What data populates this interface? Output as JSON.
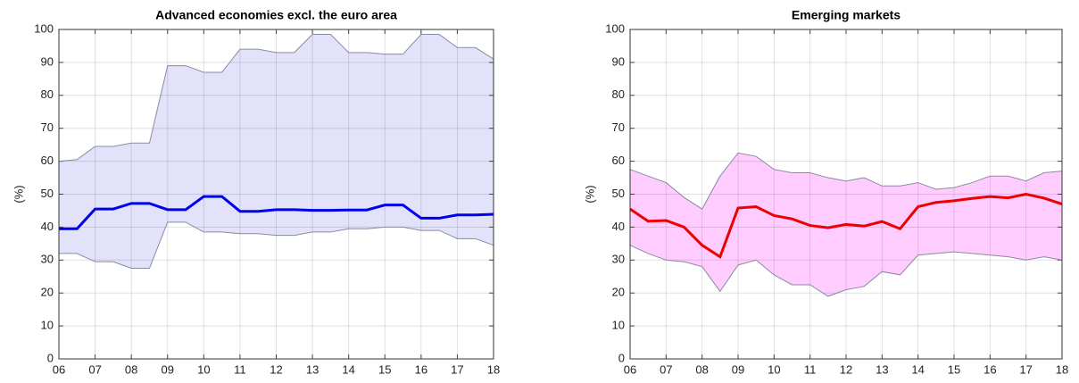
{
  "chart_data": [
    {
      "type": "band-line",
      "title": "Advanced economies excl. the euro area",
      "ylabel": "(%)",
      "x": [
        6,
        6.5,
        7,
        7.5,
        8,
        8.5,
        9,
        9.5,
        10,
        10.5,
        11,
        11.5,
        12,
        12.5,
        13,
        13.5,
        14,
        14.5,
        15,
        15.5,
        16,
        16.5,
        17,
        17.5,
        18
      ],
      "values": [
        39.5,
        39.5,
        45.5,
        45.5,
        47.2,
        47.2,
        45.3,
        45.3,
        49.3,
        49.3,
        44.8,
        44.8,
        45.3,
        45.3,
        45.1,
        45.1,
        45.2,
        45.2,
        46.7,
        46.7,
        42.7,
        42.7,
        43.7,
        43.7,
        43.9
      ],
      "color": "#0000ee",
      "band": {
        "upper": [
          60,
          60.5,
          64.5,
          64.5,
          65.5,
          65.5,
          89,
          89,
          87,
          87,
          94,
          94,
          93,
          93,
          98.5,
          98.5,
          93,
          93,
          92.5,
          92.5,
          98.5,
          98.5,
          94.5,
          94.5,
          91
        ],
        "lower": [
          32,
          32,
          29.5,
          29.5,
          27.5,
          27.5,
          41.5,
          41.5,
          38.5,
          38.5,
          38,
          38,
          37.5,
          37.5,
          38.5,
          38.5,
          39.5,
          39.5,
          40,
          40,
          39,
          39,
          36.5,
          36.5,
          34.5
        ],
        "color": "#e2e2fa"
      },
      "xlim": [
        6,
        18
      ],
      "xticks": [
        {
          "value": 6,
          "label": "06"
        },
        {
          "value": 7,
          "label": "07"
        },
        {
          "value": 8,
          "label": "08"
        },
        {
          "value": 9,
          "label": "09"
        },
        {
          "value": 10,
          "label": "10"
        },
        {
          "value": 11,
          "label": "11"
        },
        {
          "value": 12,
          "label": "12"
        },
        {
          "value": 13,
          "label": "13"
        },
        {
          "value": 14,
          "label": "14"
        },
        {
          "value": 15,
          "label": "15"
        },
        {
          "value": 16,
          "label": "16"
        },
        {
          "value": 17,
          "label": "17"
        },
        {
          "value": 18,
          "label": "18"
        }
      ],
      "ylim": [
        0,
        100
      ],
      "yticks": [
        0,
        10,
        20,
        30,
        40,
        50,
        60,
        70,
        80,
        90,
        100
      ],
      "grid": true
    },
    {
      "type": "band-line",
      "title": "Emerging markets",
      "ylabel": "(%)",
      "x": [
        6,
        6.5,
        7,
        7.5,
        8,
        8.5,
        9,
        9.5,
        10,
        10.5,
        11,
        11.5,
        12,
        12.5,
        13,
        13.5,
        14,
        14.5,
        15,
        15.5,
        16,
        16.5,
        17,
        17.5,
        18
      ],
      "values": [
        45.5,
        41.8,
        42,
        40,
        34.5,
        31,
        45.8,
        46.2,
        43.5,
        42.5,
        40.5,
        39.8,
        40.8,
        40.3,
        41.7,
        39.5,
        46.2,
        47.5,
        48,
        48.7,
        49.3,
        48.9,
        50,
        48.8,
        47
      ],
      "color": "#ee0000",
      "band": {
        "upper": [
          57.5,
          55.5,
          53.5,
          49,
          45.5,
          55.5,
          62.5,
          61.5,
          57.5,
          56.5,
          56.5,
          55,
          54,
          55,
          52.5,
          52.5,
          53.5,
          51.5,
          52,
          53.5,
          55.5,
          55.5,
          54,
          56.5,
          57
        ],
        "lower": [
          34.5,
          32,
          30,
          29.5,
          28,
          20.5,
          28.5,
          30,
          25.5,
          22.5,
          22.5,
          19,
          21,
          22,
          26.5,
          25.5,
          31.5,
          32,
          32.5,
          32,
          31.5,
          31,
          30,
          31,
          30
        ],
        "color": "#ffccff"
      },
      "xlim": [
        6,
        18
      ],
      "xticks": [
        {
          "value": 6,
          "label": "06"
        },
        {
          "value": 7,
          "label": "07"
        },
        {
          "value": 8,
          "label": "08"
        },
        {
          "value": 9,
          "label": "09"
        },
        {
          "value": 10,
          "label": "10"
        },
        {
          "value": 11,
          "label": "11"
        },
        {
          "value": 12,
          "label": "12"
        },
        {
          "value": 13,
          "label": "13"
        },
        {
          "value": 14,
          "label": "14"
        },
        {
          "value": 15,
          "label": "15"
        },
        {
          "value": 16,
          "label": "16"
        },
        {
          "value": 17,
          "label": "17"
        },
        {
          "value": 18,
          "label": "18"
        }
      ],
      "ylim": [
        0,
        100
      ],
      "yticks": [
        0,
        10,
        20,
        30,
        40,
        50,
        60,
        70,
        80,
        90,
        100
      ],
      "grid": true
    }
  ]
}
